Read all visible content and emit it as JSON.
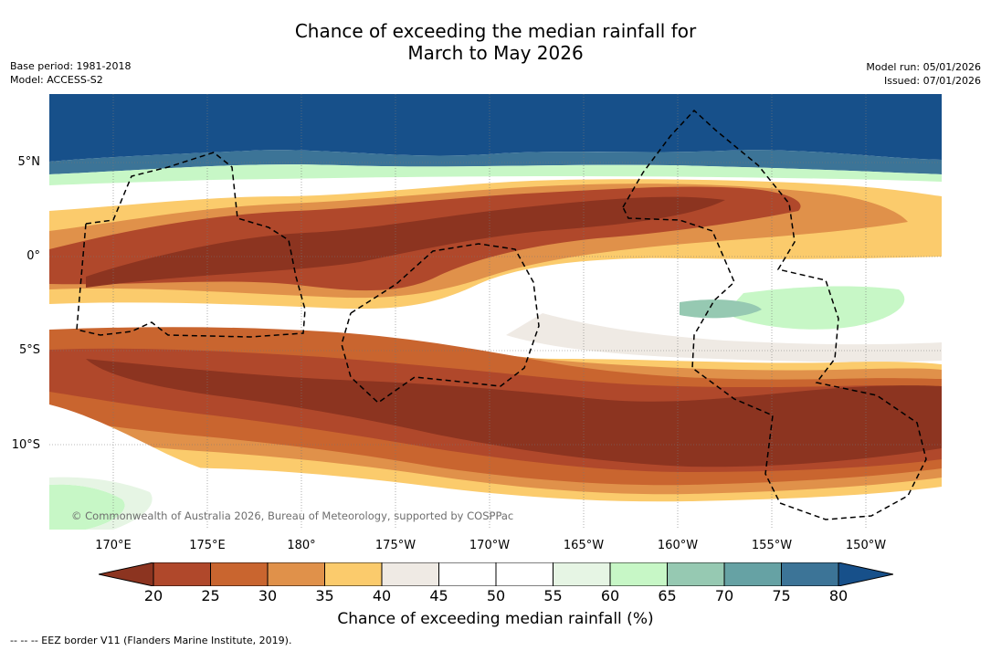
{
  "title": {
    "line1": "Chance of exceeding the median rainfall for",
    "line2": "March to May 2026"
  },
  "meta": {
    "base_period": "Base period: 1981-2018",
    "model": "Model: ACCESS-S2",
    "model_run": "Model run: 05/01/2026",
    "issued": "Issued: 07/01/2026"
  },
  "map": {
    "copyright": "© Commonwealth of Australia 2026, Bureau of Meteorology, supported by COSPPac",
    "lat_labels": [
      "5°N",
      "0°",
      "5°S",
      "10°S"
    ],
    "lon_labels": [
      "170°E",
      "175°E",
      "180°",
      "175°W",
      "170°W",
      "165°W",
      "160°W",
      "155°W",
      "150°W"
    ]
  },
  "colorbar": {
    "title": "Chance of exceeding median rainfall (%)",
    "ticks": [
      "20",
      "25",
      "30",
      "35",
      "40",
      "45",
      "50",
      "55",
      "60",
      "65",
      "70",
      "75",
      "80"
    ],
    "colors": [
      "#8c3420",
      "#b0482b",
      "#c9652f",
      "#e0914a",
      "#fbcb6c",
      "#efeae4",
      "#ffffff",
      "#ffffff",
      "#e6f5e4",
      "#c7f7c6",
      "#96c9b2",
      "#66a2a4",
      "#3c7497",
      "#17508a"
    ]
  },
  "footnote": "--  --  -- EEZ border V11 (Flanders Marine Institute, 2019)."
}
